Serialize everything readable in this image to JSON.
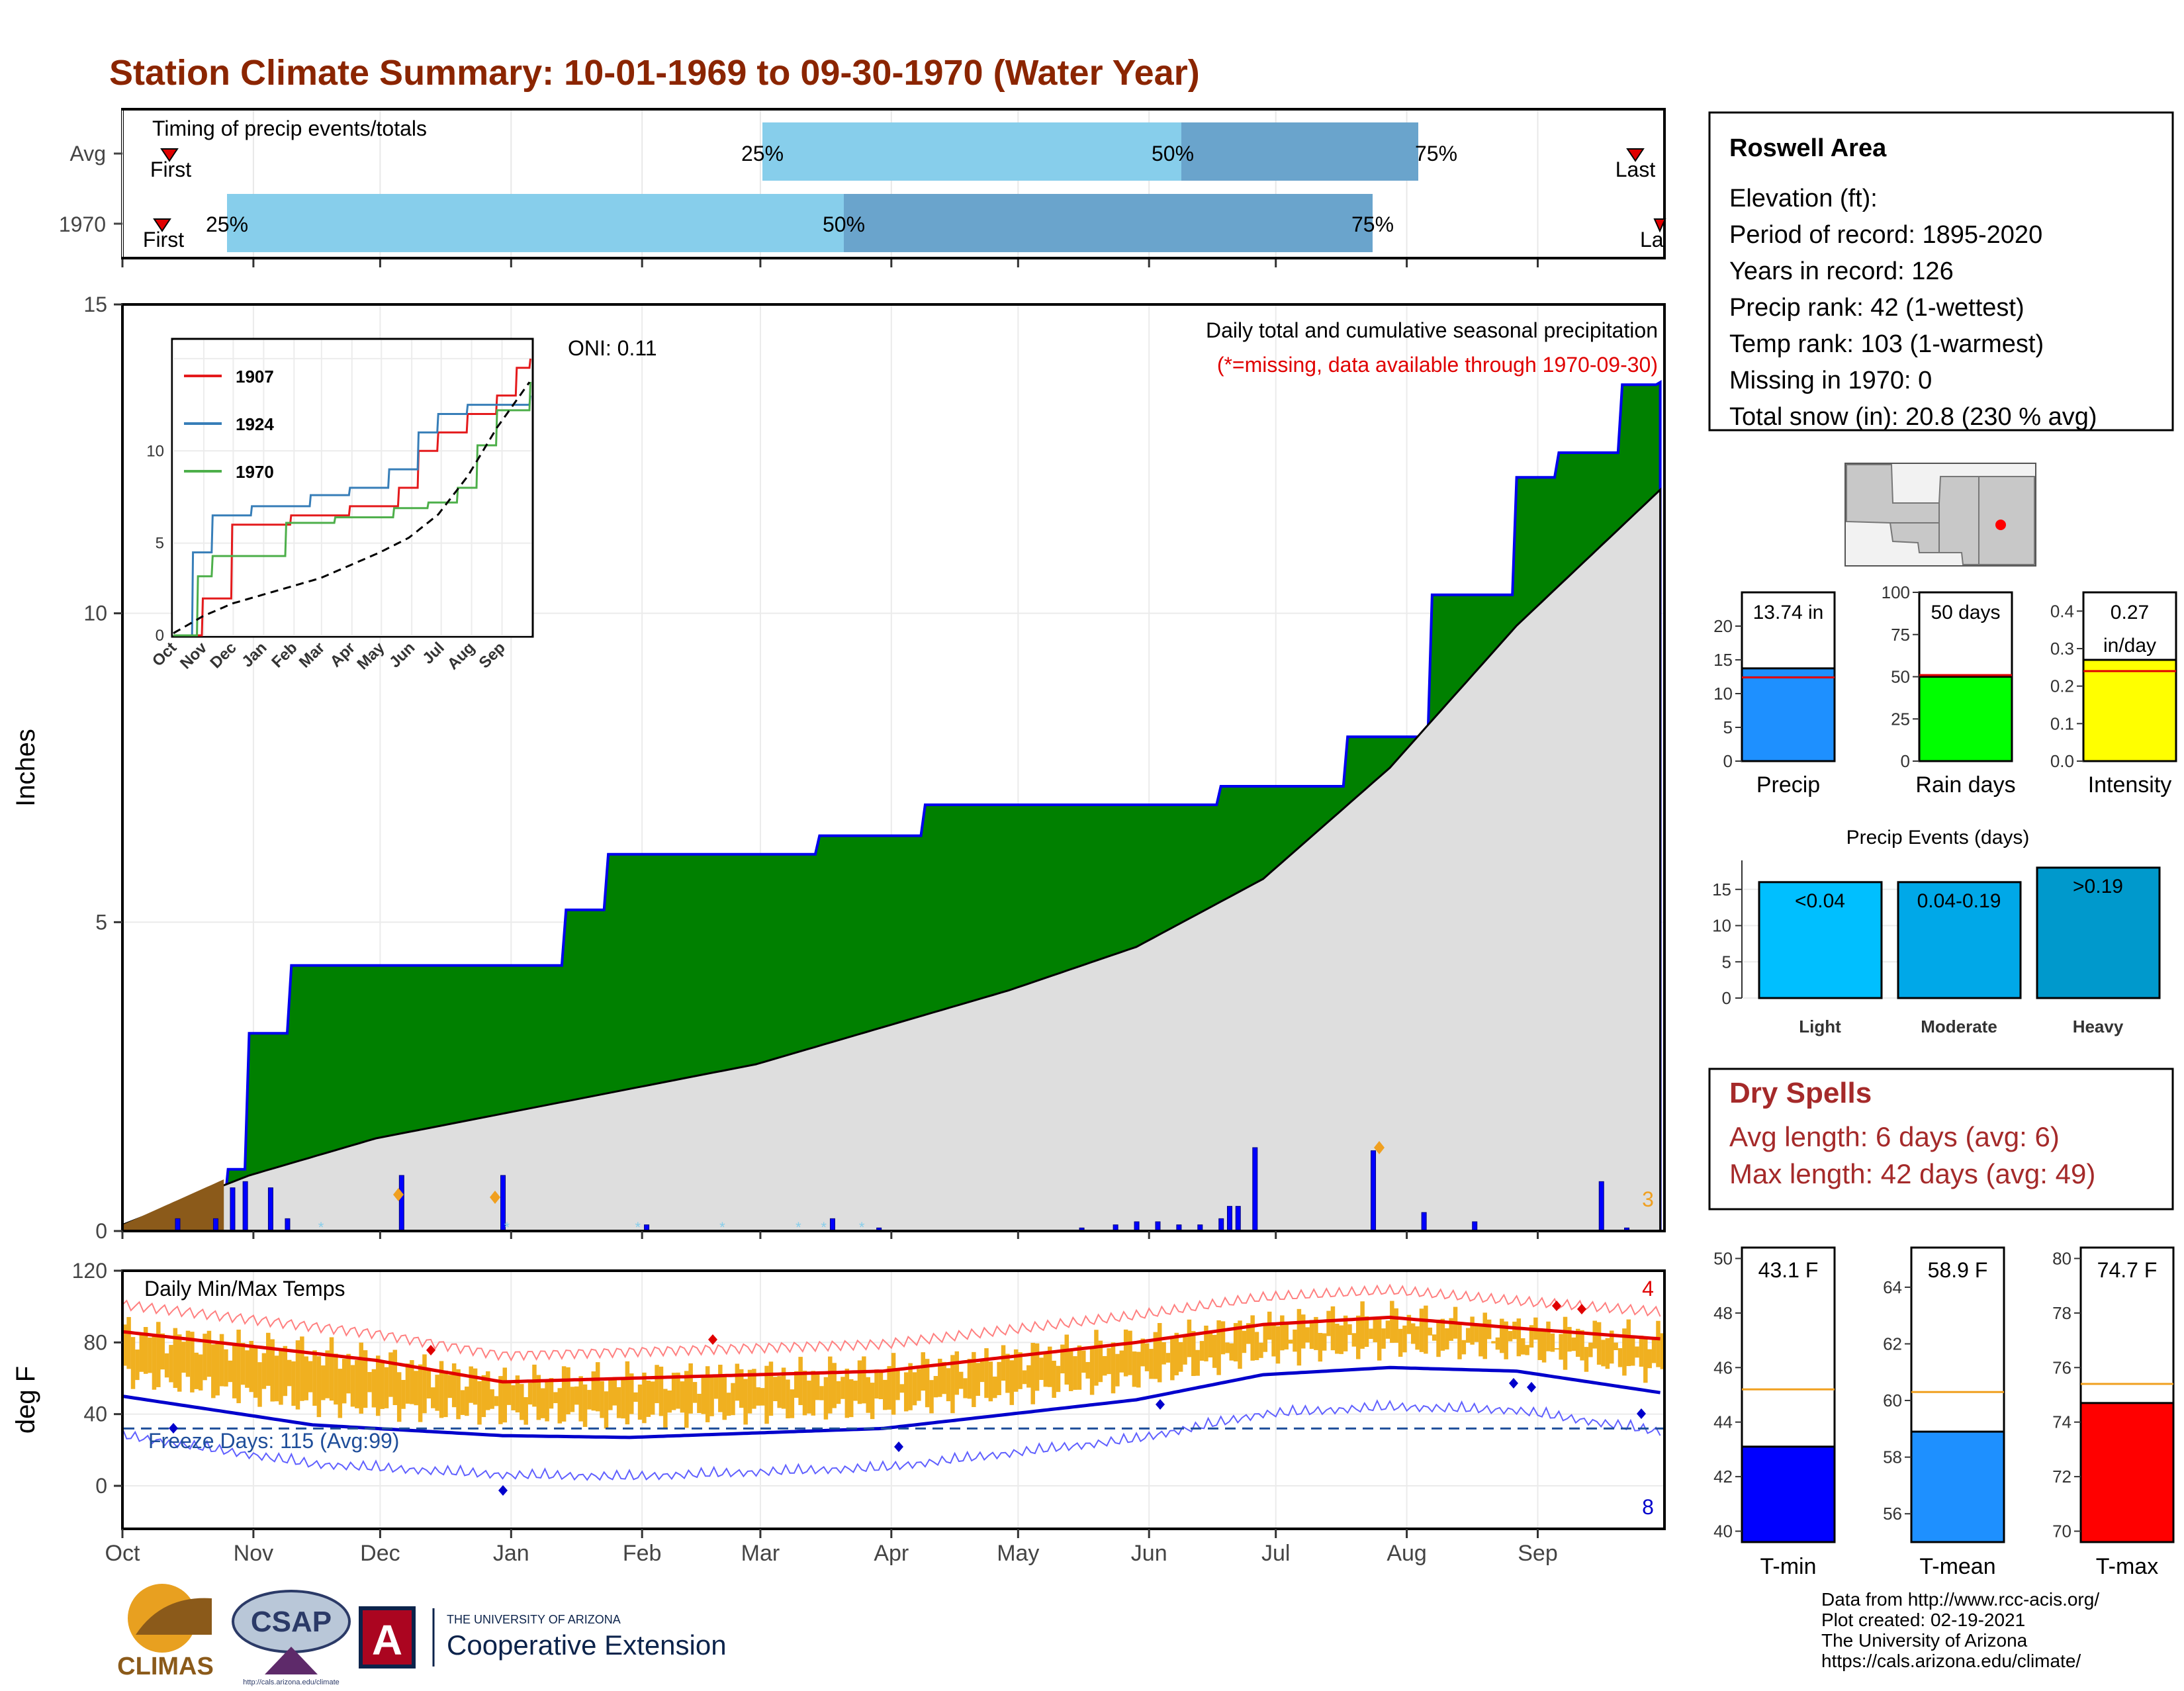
{
  "title": "Station Climate Summary: 10-01-1969 to 09-30-1970 (Water Year)",
  "colors": {
    "title": "#8b2500",
    "light_blue": "#87ceeb",
    "mid_blue": "#6aa4cc",
    "green": "#008000",
    "gray_fill": "#dedede",
    "precip_bar": "#0000ff",
    "orange": "#f0b020",
    "dry_red": "#a52a2a"
  },
  "timing": {
    "title": "Timing of precip events/totals",
    "rows": [
      {
        "label": "Avg",
        "first": "First",
        "last": "Last",
        "p25": "25%",
        "p50": "50%",
        "p75": "75%"
      },
      {
        "label": "1970",
        "first": "First",
        "last": "La",
        "p25": "25%",
        "p50": "50%",
        "p75": "75%"
      }
    ]
  },
  "station": {
    "name": "Roswell Area",
    "lines": [
      "Elevation (ft):",
      "Period of record: 1895-2020",
      "Years in record: 126",
      "Precip rank: 42 (1-wettest)",
      "Temp rank: 103 (1-warmest)",
      "Missing in 1970: 0",
      "Total snow (in): 20.8 (230 % avg)"
    ]
  },
  "precip_panel": {
    "ylabel": "Inches",
    "oni": "ONI: 0.11",
    "note1": "Daily total and cumulative seasonal precipitation",
    "note2": "(*=missing, data available through 1970-09-30)",
    "count": "3",
    "y_ticks": [
      "0",
      "5",
      "10",
      "15"
    ]
  },
  "inset": {
    "y_ticks": [
      "0",
      "5",
      "10"
    ],
    "months": [
      "Oct",
      "Nov",
      "Dec",
      "Jan",
      "Feb",
      "Mar",
      "Apr",
      "May",
      "Jun",
      "Jul",
      "Aug",
      "Sep"
    ],
    "legend": [
      "1907",
      "1924",
      "1970"
    ]
  },
  "temp_panel": {
    "ylabel": "deg F",
    "title": "Daily Min/Max Temps",
    "freeze": "Freeze Days: 115 (Avg:99)",
    "count_hot": "4",
    "count_cold": "8",
    "y_ticks": [
      "0",
      "40",
      "80",
      "120"
    ]
  },
  "months": [
    "Oct",
    "Nov",
    "Dec",
    "Jan",
    "Feb",
    "Mar",
    "Apr",
    "May",
    "Jun",
    "Jul",
    "Aug",
    "Sep"
  ],
  "mini_bars": [
    {
      "label": "Precip",
      "value_text": "13.74 in",
      "ticks": [
        "0",
        "5",
        "10",
        "15",
        "20"
      ]
    },
    {
      "label": "Rain days",
      "value_text": "50 days",
      "ticks": [
        "0",
        "25",
        "50",
        "75",
        "100"
      ]
    },
    {
      "label": "Intensity",
      "value_text1": "0.27",
      "value_text2": "in/day",
      "ticks": [
        "0.0",
        "0.1",
        "0.2",
        "0.3",
        "0.4"
      ]
    }
  ],
  "events": {
    "title": "Precip Events (days)",
    "ticks": [
      "0",
      "5",
      "10",
      "15"
    ],
    "bars": [
      {
        "cat": "Light",
        "label": "<0.04"
      },
      {
        "cat": "Moderate",
        "label": "0.04-0.19"
      },
      {
        "cat": "Heavy",
        "label": ">0.19"
      }
    ]
  },
  "dry_spells": {
    "title": "Dry Spells",
    "avg": "Avg length: 6 days (avg: 6)",
    "max": "Max length: 42 days (avg: 49)"
  },
  "temp_bars": [
    {
      "label": "T-min",
      "value_text": "43.1 F",
      "ticks": [
        "40",
        "42",
        "44",
        "46",
        "48",
        "50"
      ]
    },
    {
      "label": "T-mean",
      "value_text": "58.9 F",
      "ticks": [
        "56",
        "58",
        "60",
        "62",
        "64"
      ]
    },
    {
      "label": "T-max",
      "value_text": "74.7 F",
      "ticks": [
        "70",
        "72",
        "74",
        "76",
        "78",
        "80"
      ]
    }
  ],
  "footer": {
    "lines": [
      "Data from http://www.rcc-acis.org/",
      "Plot created: 02-19-2021",
      "The University of Arizona",
      "https://cals.arizona.edu/climate/"
    ],
    "climas": "CLIMAS",
    "csap": "CSAP",
    "csap_url": "http://cals.arizona.edu/climate",
    "ua_small": "THE UNIVERSITY OF ARIZONA",
    "ua_big": "Cooperative Extension"
  },
  "chart_data": {
    "type": "area",
    "title": "Station Climate Summary: 10-01-1969 to 09-30-1970 (Water Year)",
    "xlabel": "",
    "ylabel": "Inches",
    "ylim": [
      0,
      15
    ],
    "x_months": [
      "Oct",
      "Nov",
      "Dec",
      "Jan",
      "Feb",
      "Mar",
      "Apr",
      "May",
      "Jun",
      "Jul",
      "Aug",
      "Sep"
    ],
    "series": [
      {
        "name": "",
        "x_day": [
          0,
          20,
          25,
          30,
          40,
          65,
          105,
          115,
          145,
          165,
          190,
          225,
          260,
          290,
          310,
          320,
          330,
          340,
          355,
          364
        ],
        "values": [
          0,
          0.3,
          1.0,
          3.2,
          4.3,
          4.3,
          5.2,
          6.1,
          6.1,
          6.4,
          6.9,
          6.9,
          7.2,
          8.0,
          10.3,
          10.3,
          12.2,
          12.6,
          13.7,
          13.74
        ]
      },
      {
        "name": "",
        "x_day": [
          0,
          30,
          60,
          90,
          120,
          150,
          180,
          210,
          240,
          270,
          300,
          330,
          364
        ],
        "values": [
          0.1,
          0.9,
          1.5,
          1.9,
          2.3,
          2.7,
          3.3,
          3.9,
          4.6,
          5.7,
          7.5,
          9.8,
          12.0
        ]
      }
    ],
    "daily_precip": [
      {
        "day": 13,
        "value": 0.2
      },
      {
        "day": 22,
        "value": 0.2
      },
      {
        "day": 26,
        "value": 0.7
      },
      {
        "day": 29,
        "value": 0.8
      },
      {
        "day": 35,
        "value": 0.7
      },
      {
        "day": 39,
        "value": 0.2
      },
      {
        "day": 66,
        "value": 0.9
      },
      {
        "day": 90,
        "value": 0.9
      },
      {
        "day": 124,
        "value": 0.1
      },
      {
        "day": 168,
        "value": 0.2
      },
      {
        "day": 179,
        "value": 0.05
      },
      {
        "day": 227,
        "value": 0.05
      },
      {
        "day": 235,
        "value": 0.1
      },
      {
        "day": 240,
        "value": 0.15
      },
      {
        "day": 245,
        "value": 0.15
      },
      {
        "day": 250,
        "value": 0.1
      },
      {
        "day": 255,
        "value": 0.1
      },
      {
        "day": 260,
        "value": 0.2
      },
      {
        "day": 262,
        "value": 0.4
      },
      {
        "day": 264,
        "value": 0.4
      },
      {
        "day": 268,
        "value": 1.35
      },
      {
        "day": 296,
        "value": 1.3
      },
      {
        "day": 308,
        "value": 0.3
      },
      {
        "day": 320,
        "value": 0.15
      },
      {
        "day": 350,
        "value": 0.8
      },
      {
        "day": 356,
        "value": 0.05
      }
    ],
    "inset_series": [
      {
        "name": "1907",
        "x_day": [
          0,
          30,
          60,
          120,
          180,
          230,
          250,
          270,
          300,
          330,
          350,
          364
        ],
        "values": [
          0,
          2,
          6,
          6.5,
          7,
          8,
          10,
          11,
          12,
          13,
          14.5,
          15
        ]
      },
      {
        "name": "1924",
        "x_day": [
          0,
          20,
          40,
          80,
          140,
          180,
          220,
          250,
          270,
          300,
          364
        ],
        "values": [
          0,
          4.5,
          6.5,
          7,
          7.6,
          8,
          9,
          11,
          12,
          12.5,
          13
        ]
      },
      {
        "name": "1970",
        "x_day": [
          0,
          25,
          40,
          65,
          115,
          165,
          225,
          260,
          290,
          310,
          330,
          364
        ],
        "values": [
          0,
          3.2,
          4.3,
          4.3,
          6.1,
          6.4,
          6.9,
          7.2,
          8.0,
          10.3,
          12.2,
          13.74
        ]
      }
    ],
    "temp_series": [
      {
        "name": "",
        "x_day": [
          0,
          60,
          90,
          120,
          180,
          240,
          270,
          300,
          330,
          364
        ],
        "values": [
          86,
          70,
          58,
          60,
          64,
          80,
          90,
          94,
          88,
          82
        ]
      },
      {
        "name": "",
        "x_day": [
          0,
          45,
          90,
          120,
          180,
          240,
          270,
          300,
          330,
          364
        ],
        "values": [
          50,
          34,
          28,
          27,
          32,
          48,
          62,
          66,
          64,
          52
        ]
      }
    ],
    "mini_values": {
      "precip": 13.74,
      "precip_avg": 12.4,
      "rain_days": 50,
      "rain_days_avg": 51,
      "intensity": 0.27,
      "intensity_avg": 0.24
    },
    "event_values": [
      16,
      16,
      18
    ],
    "temp_values": {
      "tmin": 43.1,
      "tmin_avg": 45.2,
      "tmean": 58.9,
      "tmean_avg": 60.3,
      "tmax": 74.7,
      "tmax_avg": 75.4
    }
  }
}
